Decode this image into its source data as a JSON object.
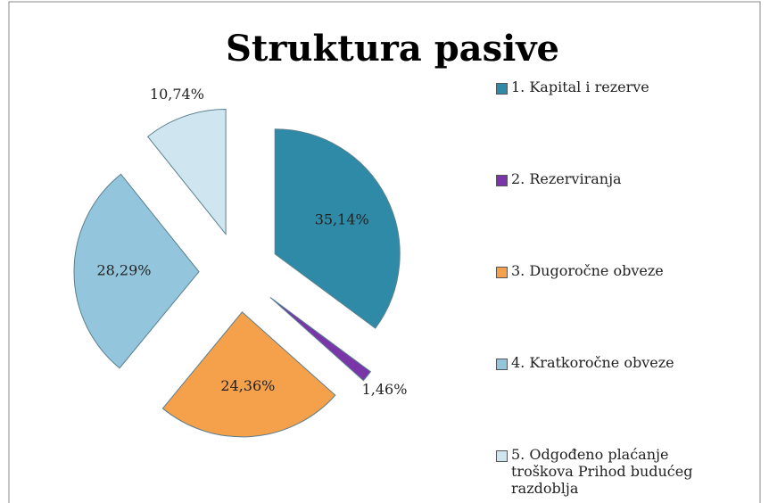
{
  "chart_data": {
    "type": "pie",
    "title": "Struktura pasive",
    "categories": [
      "1. Kapital i rezerve",
      "2. Rezerviranja",
      "3. Dugoročne obveze",
      "4. Kratkoročne obveze",
      "5. Odgođeno plaćanje troškova Prihod budućeg razdoblja"
    ],
    "values": [
      35.14,
      1.46,
      24.36,
      28.29,
      10.74
    ],
    "value_labels": [
      "35,14%",
      "1,46%",
      "24,36%",
      "28,29%",
      "10,74%"
    ],
    "colors": [
      "#2f8aa7",
      "#7a35a8",
      "#f5a04a",
      "#93c6dc",
      "#cfe6f0"
    ],
    "legend": "right"
  }
}
